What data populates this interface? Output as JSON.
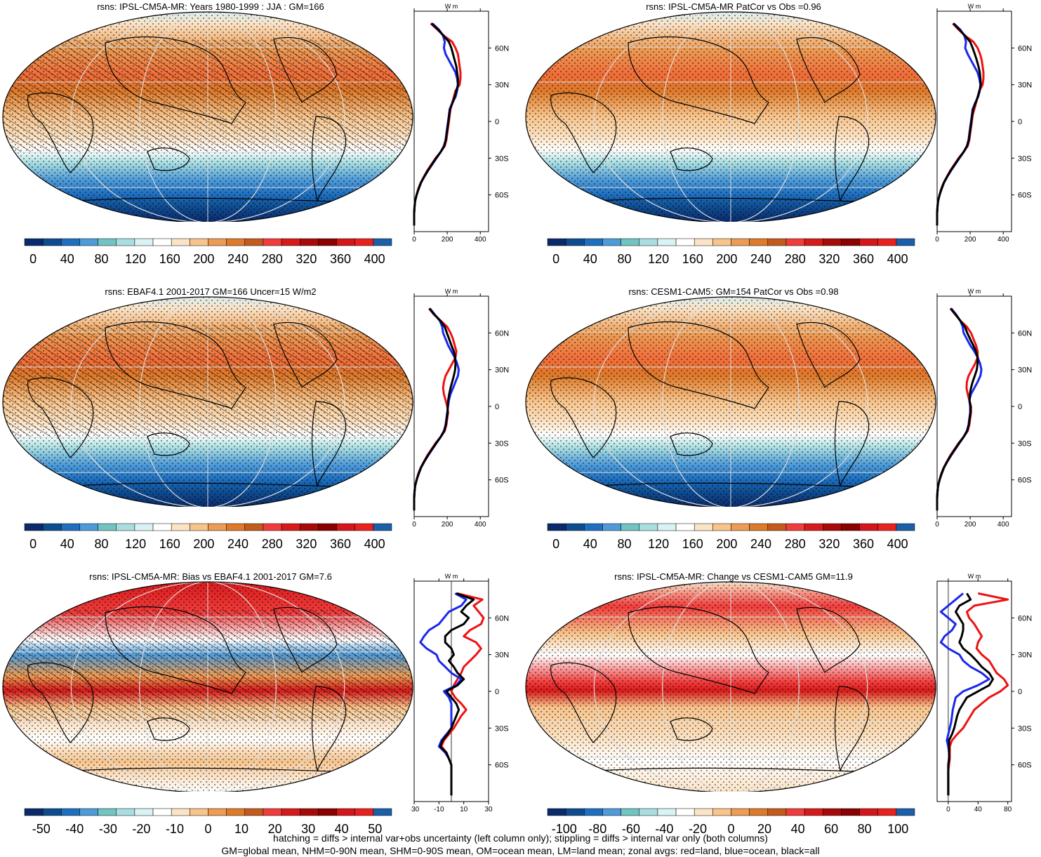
{
  "footer": {
    "line1": "hatching = diffs > internal var+obs uncertainty (left column only); stippling = diffs > internal var only (both columns)",
    "line2": "GM=global mean, NHM=0-90N mean, SHM=0-90S mean, OM=ocean mean, LM=land mean; zonal avgs: red=land, blue=ocean, black=all"
  },
  "palette": [
    "#0b2a6b",
    "#0f4c8f",
    "#1e6fbf",
    "#4f9bd8",
    "#72c4c2",
    "#a9dde0",
    "#d9f2f4",
    "#ffffff",
    "#fbe3c5",
    "#f7c48c",
    "#ec9c55",
    "#dd7a2b",
    "#c35b1d",
    "#f03c3c",
    "#d61a1a",
    "#a80a0a",
    "#8b0000",
    "#d4161b",
    "#e8211f",
    "#1b5fa8"
  ],
  "zonal_unit": "W m",
  "zonal_unit_sup": "-2",
  "lat_labels": [
    "60N",
    "30N",
    "0",
    "30S",
    "60S"
  ],
  "chart_data": [
    {
      "type": "heatmap",
      "title": "rsns: IPSL-CM5A-MR: Years 1980-1999 : JJA : GM=166",
      "colorbar_ticks": [
        "0",
        "40",
        "80",
        "120",
        "160",
        "200",
        "240",
        "280",
        "320",
        "360",
        "400"
      ],
      "colorbar_range": [
        -10,
        420
      ],
      "zonal_xticks": [
        "0",
        "200",
        "400"
      ],
      "zonal_xlim": [
        0,
        450
      ],
      "zonal_lat": [
        80,
        75,
        70,
        65,
        60,
        55,
        50,
        45,
        40,
        35,
        30,
        25,
        20,
        15,
        10,
        5,
        0,
        -5,
        -10,
        -15,
        -20,
        -25,
        -30,
        -35,
        -40,
        -45,
        -50,
        -55,
        -60,
        -65,
        -70,
        -75,
        -80,
        -85
      ],
      "series": [
        {
          "name": "land",
          "values": [
            100,
            140,
            180,
            230,
            250,
            265,
            270,
            275,
            280,
            280,
            275,
            250,
            240,
            230,
            220,
            215,
            210,
            205,
            200,
            195,
            185,
            160,
            130,
            105,
            80,
            60,
            40,
            25,
            15,
            5,
            2,
            0,
            0,
            0
          ]
        },
        {
          "name": "ocean",
          "values": [
            110,
            150,
            175,
            185,
            180,
            190,
            210,
            230,
            250,
            260,
            265,
            260,
            250,
            230,
            215,
            210,
            205,
            200,
            195,
            190,
            180,
            160,
            135,
            110,
            85,
            62,
            42,
            28,
            15,
            6,
            2,
            0,
            0,
            0
          ]
        },
        {
          "name": "all",
          "values": [
            105,
            145,
            178,
            210,
            225,
            235,
            245,
            255,
            260,
            265,
            265,
            255,
            245,
            232,
            217,
            212,
            207,
            202,
            197,
            192,
            182,
            160,
            133,
            108,
            83,
            61,
            41,
            27,
            15,
            6,
            2,
            0,
            0,
            0
          ]
        }
      ]
    },
    {
      "type": "heatmap",
      "title": "rsns: IPSL-CM5A-MR PatCor vs Obs =0.96",
      "colorbar_ticks": [
        "0",
        "40",
        "80",
        "120",
        "160",
        "200",
        "240",
        "280",
        "320",
        "360",
        "400"
      ],
      "colorbar_range": [
        -10,
        420
      ],
      "zonal_xticks": [
        "0",
        "200",
        "400"
      ],
      "zonal_xlim": [
        0,
        450
      ],
      "zonal_lat": [
        80,
        75,
        70,
        65,
        60,
        55,
        50,
        45,
        40,
        35,
        30,
        25,
        20,
        15,
        10,
        5,
        0,
        -5,
        -10,
        -15,
        -20,
        -25,
        -30,
        -35,
        -40,
        -45,
        -50,
        -55,
        -60,
        -65,
        -70,
        -75,
        -80,
        -85
      ],
      "series": [
        {
          "name": "land",
          "values": [
            95,
            130,
            170,
            220,
            245,
            260,
            270,
            275,
            280,
            280,
            275,
            255,
            245,
            235,
            225,
            215,
            210,
            205,
            200,
            195,
            185,
            160,
            130,
            105,
            80,
            60,
            40,
            25,
            15,
            5,
            2,
            0,
            0,
            0
          ]
        },
        {
          "name": "ocean",
          "values": [
            100,
            140,
            165,
            175,
            170,
            185,
            205,
            225,
            245,
            255,
            262,
            258,
            248,
            230,
            215,
            210,
            205,
            200,
            195,
            190,
            180,
            160,
            135,
            110,
            85,
            62,
            42,
            28,
            15,
            6,
            2,
            0,
            0,
            0
          ]
        },
        {
          "name": "all",
          "values": [
            98,
            135,
            168,
            200,
            215,
            228,
            240,
            250,
            258,
            262,
            264,
            256,
            246,
            232,
            218,
            212,
            207,
            202,
            197,
            192,
            182,
            160,
            133,
            108,
            83,
            61,
            41,
            27,
            15,
            6,
            2,
            0,
            0,
            0
          ]
        }
      ]
    },
    {
      "type": "heatmap",
      "title": "rsns: EBAF4.1 2001-2017 GM=166 Uncer=15 W/m2",
      "colorbar_ticks": [
        "0",
        "40",
        "80",
        "120",
        "160",
        "200",
        "240",
        "280",
        "320",
        "360",
        "400"
      ],
      "colorbar_range": [
        -10,
        420
      ],
      "zonal_xticks": [
        "0",
        "200",
        "400"
      ],
      "zonal_xlim": [
        0,
        450
      ],
      "zonal_lat": [
        80,
        75,
        70,
        65,
        60,
        55,
        50,
        45,
        40,
        35,
        30,
        25,
        20,
        15,
        10,
        5,
        0,
        -5,
        -10,
        -15,
        -20,
        -25,
        -30,
        -35,
        -40,
        -45,
        -50,
        -55,
        -60,
        -65,
        -70,
        -75,
        -80,
        -85
      ],
      "series": [
        {
          "name": "land",
          "values": [
            90,
            120,
            160,
            200,
            220,
            235,
            245,
            255,
            250,
            230,
            210,
            190,
            180,
            175,
            180,
            190,
            200,
            205,
            200,
            195,
            185,
            160,
            130,
            105,
            80,
            60,
            40,
            25,
            15,
            5,
            2,
            0,
            0,
            0
          ]
        },
        {
          "name": "ocean",
          "values": [
            95,
            125,
            155,
            170,
            175,
            190,
            205,
            225,
            245,
            260,
            270,
            265,
            250,
            235,
            220,
            210,
            205,
            200,
            195,
            190,
            180,
            160,
            135,
            110,
            85,
            62,
            42,
            28,
            15,
            6,
            2,
            0,
            0,
            0
          ]
        },
        {
          "name": "all",
          "values": [
            92,
            122,
            158,
            185,
            198,
            212,
            225,
            240,
            248,
            250,
            248,
            240,
            230,
            220,
            212,
            206,
            203,
            202,
            197,
            192,
            182,
            160,
            133,
            108,
            83,
            61,
            41,
            27,
            15,
            6,
            2,
            0,
            0,
            0
          ]
        }
      ]
    },
    {
      "type": "heatmap",
      "title": "rsns: CESM1-CAM5: GM=154 PatCor vs Obs =0.98",
      "colorbar_ticks": [
        "0",
        "40",
        "80",
        "120",
        "160",
        "200",
        "240",
        "280",
        "320",
        "360",
        "400"
      ],
      "colorbar_range": [
        -10,
        420
      ],
      "zonal_xticks": [
        "0",
        "200",
        "400"
      ],
      "zonal_xlim": [
        0,
        450
      ],
      "zonal_lat": [
        80,
        75,
        70,
        65,
        60,
        55,
        50,
        45,
        40,
        35,
        30,
        25,
        20,
        15,
        10,
        5,
        0,
        -5,
        -10,
        -15,
        -20,
        -25,
        -30,
        -35,
        -40,
        -45,
        -50,
        -55,
        -60,
        -65,
        -70,
        -75,
        -80,
        -85
      ],
      "series": [
        {
          "name": "land",
          "values": [
            80,
            110,
            140,
            180,
            205,
            220,
            235,
            245,
            245,
            230,
            210,
            190,
            180,
            178,
            185,
            195,
            205,
            205,
            200,
            195,
            185,
            160,
            130,
            105,
            80,
            60,
            40,
            25,
            15,
            5,
            2,
            0,
            0,
            0
          ]
        },
        {
          "name": "ocean",
          "values": [
            85,
            115,
            140,
            155,
            160,
            180,
            200,
            225,
            245,
            260,
            268,
            262,
            245,
            225,
            205,
            195,
            200,
            200,
            195,
            190,
            180,
            160,
            135,
            110,
            85,
            62,
            42,
            28,
            15,
            6,
            2,
            0,
            0,
            0
          ]
        },
        {
          "name": "all",
          "values": [
            82,
            112,
            140,
            168,
            182,
            200,
            218,
            235,
            245,
            245,
            240,
            228,
            215,
            205,
            198,
            196,
            202,
            202,
            197,
            192,
            182,
            160,
            133,
            108,
            83,
            61,
            41,
            27,
            15,
            6,
            2,
            0,
            0,
            0
          ]
        }
      ]
    },
    {
      "type": "heatmap",
      "title": "rsns: IPSL-CM5A-MR: Bias vs EBAF4.1 2001-2017 GM=7.6",
      "colorbar_ticks": [
        "-50",
        "-40",
        "-30",
        "-20",
        "-10",
        "0",
        "10",
        "20",
        "30",
        "40",
        "50"
      ],
      "colorbar_range": [
        -55,
        55
      ],
      "zonal_xticks": [
        "-30",
        "-10",
        "10",
        "30"
      ],
      "zonal_xlim": [
        -30,
        30
      ],
      "zonal_lat": [
        80,
        75,
        70,
        65,
        60,
        55,
        50,
        45,
        40,
        35,
        30,
        25,
        20,
        15,
        10,
        5,
        0,
        -5,
        -10,
        -15,
        -20,
        -25,
        -30,
        -35,
        -40,
        -45,
        -50,
        -55,
        -60,
        -65,
        -70,
        -75,
        -80,
        -85
      ],
      "series": [
        {
          "name": "land",
          "values": [
            5,
            25,
            18,
            22,
            26,
            24,
            15,
            10,
            20,
            24,
            20,
            15,
            10,
            8,
            5,
            2,
            0,
            3,
            8,
            12,
            8,
            5,
            2,
            -2,
            -6,
            -8,
            -4,
            -2,
            0,
            0,
            0,
            0,
            0,
            0
          ]
        },
        {
          "name": "ocean",
          "values": [
            3,
            12,
            8,
            -2,
            -6,
            -10,
            -18,
            -22,
            -25,
            -20,
            -12,
            -10,
            -5,
            0,
            8,
            4,
            -6,
            -2,
            0,
            0,
            0,
            0,
            0,
            -4,
            -8,
            -10,
            -5,
            -2,
            0,
            0,
            0,
            0,
            0,
            0
          ]
        },
        {
          "name": "all",
          "values": [
            4,
            18,
            12,
            8,
            14,
            10,
            0,
            -5,
            -5,
            0,
            2,
            -2,
            2,
            5,
            10,
            5,
            -4,
            0,
            4,
            6,
            4,
            2,
            0,
            -3,
            -7,
            -9,
            -4,
            -2,
            0,
            0,
            0,
            0,
            0,
            0
          ]
        }
      ]
    },
    {
      "type": "heatmap",
      "title": "rsns: IPSL-CM5A-MR: Change vs CESM1-CAM5 GM=11.9",
      "colorbar_ticks": [
        "-100",
        "-80",
        "-60",
        "-40",
        "-20",
        "0",
        "20",
        "40",
        "60",
        "80",
        "100"
      ],
      "colorbar_range": [
        -110,
        110
      ],
      "zonal_xticks": [
        "0",
        "40",
        "80"
      ],
      "zonal_xlim": [
        -15,
        85
      ],
      "zonal_lat": [
        80,
        75,
        70,
        65,
        60,
        55,
        50,
        45,
        40,
        35,
        30,
        25,
        20,
        15,
        10,
        5,
        0,
        -5,
        -10,
        -15,
        -20,
        -25,
        -30,
        -35,
        -40,
        -45,
        -50,
        -55,
        -60,
        -65,
        -70,
        -75,
        -80,
        -85
      ],
      "series": [
        {
          "name": "land",
          "values": [
            40,
            80,
            35,
            25,
            28,
            35,
            40,
            45,
            40,
            38,
            45,
            55,
            60,
            65,
            75,
            80,
            70,
            55,
            45,
            35,
            30,
            25,
            20,
            12,
            5,
            2,
            2,
            2,
            1,
            0,
            0,
            0,
            0,
            0
          ]
        },
        {
          "name": "ocean",
          "values": [
            20,
            10,
            0,
            -10,
            0,
            10,
            5,
            -5,
            -10,
            0,
            15,
            20,
            30,
            45,
            55,
            40,
            20,
            10,
            8,
            6,
            5,
            4,
            2,
            0,
            -2,
            0,
            1,
            1,
            0,
            0,
            0,
            0,
            0,
            0
          ]
        },
        {
          "name": "all",
          "values": [
            25,
            30,
            15,
            10,
            15,
            20,
            20,
            18,
            15,
            20,
            30,
            38,
            45,
            55,
            60,
            55,
            40,
            25,
            20,
            15,
            12,
            10,
            8,
            5,
            1,
            1,
            1,
            1,
            0,
            0,
            0,
            0,
            0,
            0
          ]
        }
      ]
    }
  ]
}
